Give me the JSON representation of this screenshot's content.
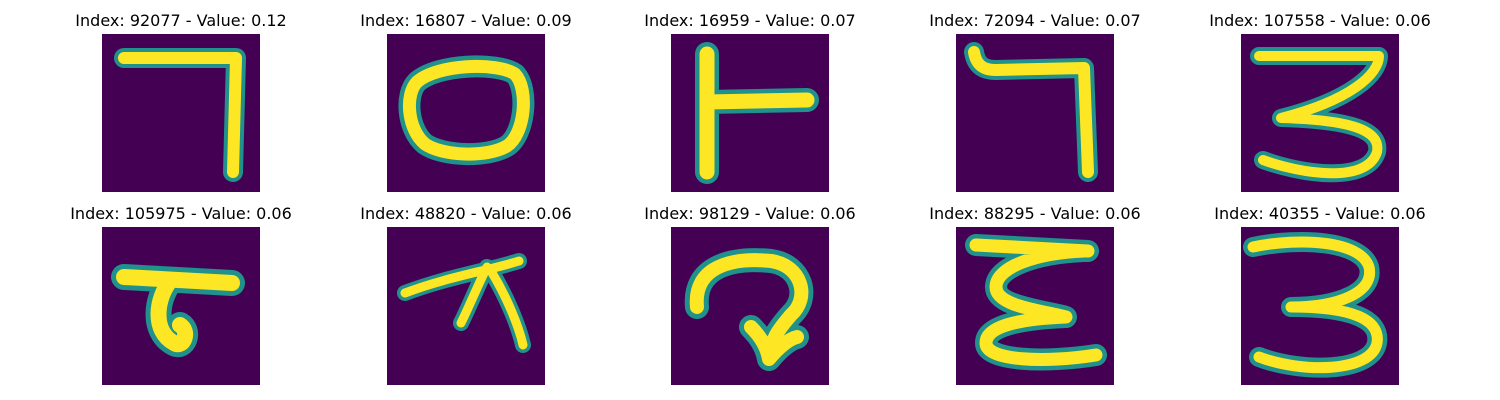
{
  "colors": {
    "background": "#440154",
    "edge": "#21918c",
    "core": "#fde725",
    "edge_mid": "#5ec962"
  },
  "panels": [
    {
      "title": "Index: 92077 - Value: 0.12",
      "glyph": "seven-shape-icon"
    },
    {
      "title": "Index: 16807 - Value: 0.09",
      "glyph": "oval-shape-icon"
    },
    {
      "title": "Index: 16959 - Value: 0.07",
      "glyph": "t-sideways-shape-icon"
    },
    {
      "title": "Index: 72094 - Value: 0.07",
      "glyph": "hooked-seven-shape-icon"
    },
    {
      "title": "Index: 107558 - Value: 0.06",
      "glyph": "three-shape-icon"
    },
    {
      "title": "Index: 105975 - Value: 0.06",
      "glyph": "curl-shape-icon"
    },
    {
      "title": "Index: 48820 - Value: 0.06",
      "glyph": "branch-shape-icon"
    },
    {
      "title": "Index: 98129 - Value: 0.06",
      "glyph": "arrow-loop-shape-icon"
    },
    {
      "title": "Index: 88295 - Value: 0.06",
      "glyph": "epsilon-shape-icon"
    },
    {
      "title": "Index: 40355 - Value: 0.06",
      "glyph": "three-round-shape-icon"
    }
  ]
}
